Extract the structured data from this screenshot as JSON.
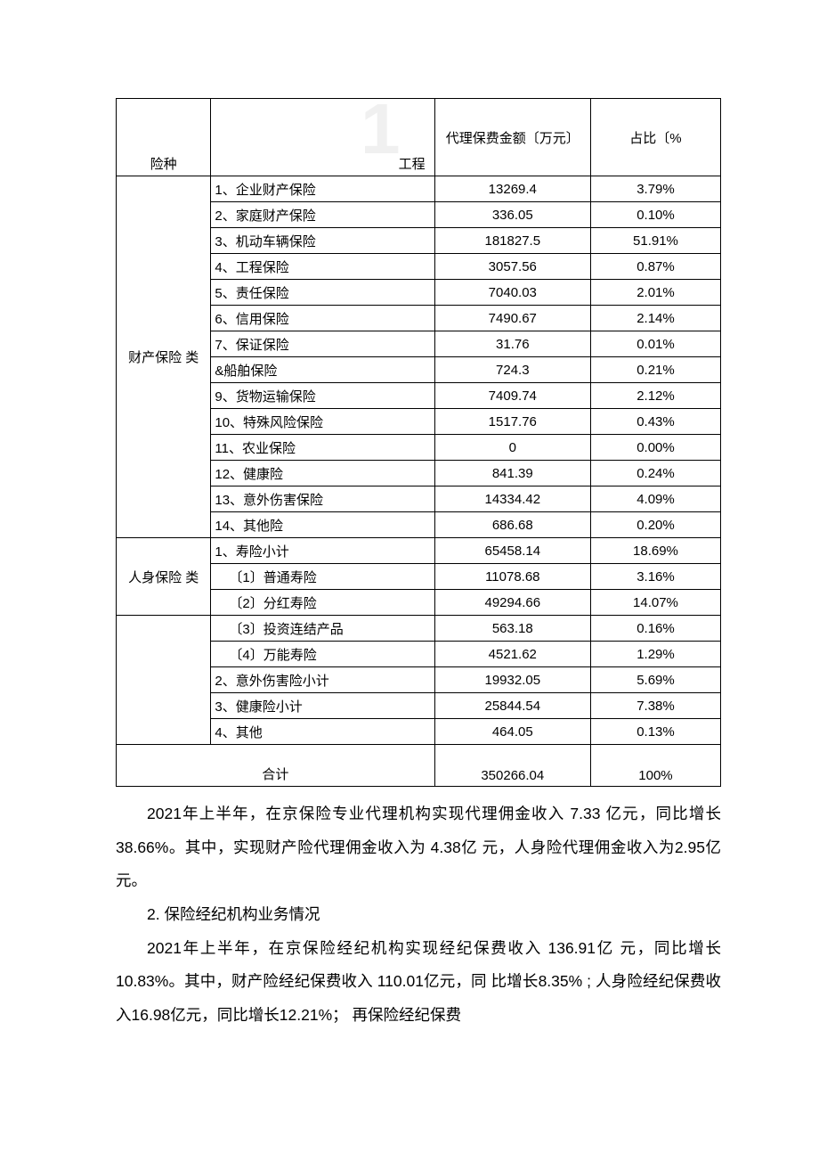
{
  "watermark": "1",
  "table": {
    "header": {
      "col1": "险种",
      "col2": "工程",
      "col3": "代理保费金额〔万元〕",
      "col4": "占比〔%"
    },
    "group_a": {
      "label": "财产保险  类",
      "rows": [
        {
          "item": "1、企业财产保险",
          "amt": "13269.4",
          "pct": "3.79%"
        },
        {
          "item": "2、家庭财产保险",
          "amt": "336.05",
          "pct": "0.10%"
        },
        {
          "item": "3、机动车辆保险",
          "amt": "181827.5",
          "pct": "51.91%"
        },
        {
          "item": "4、工程保险",
          "amt": "3057.56",
          "pct": "0.87%"
        },
        {
          "item": "5、责任保险",
          "amt": "7040.03",
          "pct": "2.01%"
        },
        {
          "item": "6、信用保险",
          "amt": "7490.67",
          "pct": "2.14%"
        },
        {
          "item": "7、保证保险",
          "amt": "31.76",
          "pct": "0.01%"
        },
        {
          "item": "&船舶保险",
          "amt": "724.3",
          "pct": "0.21%"
        },
        {
          "item": "9、货物运输保险",
          "amt": "7409.74",
          "pct": "2.12%"
        },
        {
          "item": "10、特殊风险保险",
          "amt": "1517.76",
          "pct": "0.43%"
        },
        {
          "item": "11、农业保险",
          "amt": "0",
          "pct": "0.00%"
        },
        {
          "item": "12、健康险",
          "amt": "841.39",
          "pct": "0.24%"
        },
        {
          "item": "13、意外伤害保险",
          "amt": "14334.42",
          "pct": "4.09%"
        },
        {
          "item": "14、其他险",
          "amt": "686.68",
          "pct": "0.20%"
        }
      ]
    },
    "group_b": {
      "label": "人身保险  类",
      "rows_part1": [
        {
          "item": "1、寿险小计",
          "amt": "65458.14",
          "pct": "18.69%"
        },
        {
          "item": "〔1〕普通寿险",
          "amt": "11078.68",
          "pct": "3.16%",
          "indent": true
        },
        {
          "item": "〔2〕分红寿险",
          "amt": "49294.66",
          "pct": "14.07%",
          "indent": true
        }
      ],
      "rows_part2": [
        {
          "item": "〔3〕投资连结产品",
          "amt": "563.18",
          "pct": "0.16%",
          "indent": true
        },
        {
          "item": "〔4〕万能寿险",
          "amt": "4521.62",
          "pct": "1.29%",
          "indent": true
        },
        {
          "item": "2、意外伤害险小计",
          "amt": "19932.05",
          "pct": "5.69%"
        },
        {
          "item": "3、健康险小计",
          "amt": "25844.54",
          "pct": "7.38%"
        },
        {
          "item": "4、其他",
          "amt": "464.05",
          "pct": "0.13%"
        }
      ]
    },
    "total": {
      "label": "合计",
      "amt": "350266.04",
      "pct": "100%"
    }
  },
  "prose": {
    "p1": "2021年上半年，在京保险专业代理机构实现代理佣金收入 7.33 亿元，同比增长38.66%。其中，实现财产险代理佣金收入为 4.38亿 元，人身险代理佣金收入为2.95亿元。",
    "p2": "2.     保险经纪机构业务情况",
    "p3": "2021年上半年，在京保险经纪机构实现经纪保费收入 136.91亿 元，同比增长10.83%。其中，财产险经纪保费收入 110.01亿元，同 比增长8.35% ; 人身险经纪保费收入16.98亿元，同比增长12.21%； 再保险经纪保费"
  }
}
